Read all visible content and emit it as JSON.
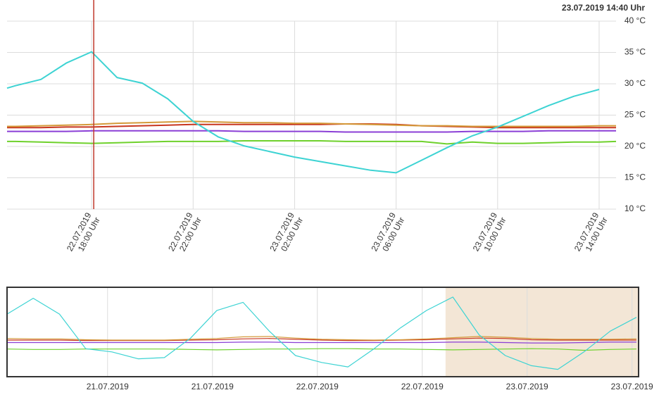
{
  "chart_data": [
    {
      "type": "line",
      "title": "23.07.2019 14:40 Uhr",
      "x": [
        "2019-07-22T14:40",
        "2019-07-22T15:00",
        "2019-07-22T16:00",
        "2019-07-22T17:00",
        "2019-07-22T18:00",
        "2019-07-22T19:00",
        "2019-07-22T20:00",
        "2019-07-22T21:00",
        "2019-07-22T22:00",
        "2019-07-22T23:00",
        "2019-07-23T00:00",
        "2019-07-23T01:00",
        "2019-07-23T02:00",
        "2019-07-23T03:00",
        "2019-07-23T04:00",
        "2019-07-23T05:00",
        "2019-07-23T06:00",
        "2019-07-23T07:00",
        "2019-07-23T08:00",
        "2019-07-23T09:00",
        "2019-07-23T10:00",
        "2019-07-23T11:00",
        "2019-07-23T12:00",
        "2019-07-23T13:00",
        "2019-07-23T14:00",
        "2019-07-23T14:40"
      ],
      "series": [
        {
          "color": "#3dd3d3",
          "values": [
            29.3,
            29.7,
            30.7,
            33.3,
            35.1,
            31.0,
            30.1,
            27.6,
            24.0,
            21.5,
            20.1,
            19.2,
            18.3,
            17.6,
            16.9,
            16.2,
            15.8,
            17.8,
            19.8,
            21.7,
            23.1,
            24.8,
            26.5,
            28.0,
            29.1,
            null
          ]
        },
        {
          "color": "#d49a3a",
          "values": [
            23.2,
            23.2,
            23.3,
            23.4,
            23.5,
            23.7,
            23.8,
            23.9,
            24.0,
            23.9,
            23.8,
            23.8,
            23.7,
            23.7,
            23.6,
            23.5,
            23.4,
            23.3,
            23.3,
            23.2,
            23.2,
            23.2,
            23.2,
            23.2,
            23.3,
            23.3
          ]
        },
        {
          "color": "#c8361f",
          "values": [
            23.0,
            23.0,
            23.0,
            23.1,
            23.1,
            23.2,
            23.3,
            23.4,
            23.5,
            23.5,
            23.5,
            23.5,
            23.5,
            23.5,
            23.6,
            23.6,
            23.5,
            23.3,
            23.2,
            23.1,
            23.0,
            23.0,
            23.0,
            23.0,
            23.0,
            23.0
          ]
        },
        {
          "color": "#8b3fd6",
          "values": [
            22.4,
            22.4,
            22.4,
            22.4,
            22.5,
            22.5,
            22.5,
            22.5,
            22.5,
            22.5,
            22.4,
            22.4,
            22.4,
            22.4,
            22.3,
            22.3,
            22.3,
            22.3,
            22.3,
            22.4,
            22.4,
            22.4,
            22.5,
            22.5,
            22.5,
            22.5
          ]
        },
        {
          "color": "#6fd12c",
          "values": [
            20.8,
            20.8,
            20.7,
            20.6,
            20.5,
            20.6,
            20.7,
            20.8,
            20.8,
            20.8,
            20.9,
            20.9,
            20.9,
            20.9,
            20.8,
            20.8,
            20.8,
            20.8,
            20.4,
            20.7,
            20.5,
            20.5,
            20.6,
            20.7,
            20.7,
            20.8
          ]
        }
      ],
      "xlim": [
        "2019-07-22T14:40",
        "2019-07-23T14:40"
      ],
      "xticks": [
        {
          "value": "2019-07-22T18:00",
          "label": [
            "22.07.2019",
            "18:00 Uhr"
          ]
        },
        {
          "value": "2019-07-22T22:00",
          "label": [
            "22.07.2019",
            "22:00 Uhr"
          ]
        },
        {
          "value": "2019-07-23T02:00",
          "label": [
            "23.07.2019",
            "02:00 Uhr"
          ]
        },
        {
          "value": "2019-07-23T06:00",
          "label": [
            "23.07.2019",
            "06:00 Uhr"
          ]
        },
        {
          "value": "2019-07-23T10:00",
          "label": [
            "23.07.2019",
            "10:00 Uhr"
          ]
        },
        {
          "value": "2019-07-23T14:00",
          "label": [
            "23.07.2019",
            "14:00 Uhr"
          ]
        }
      ],
      "ylim": [
        10,
        40
      ],
      "yticks": [
        {
          "value": 10,
          "label": "10 °C"
        },
        {
          "value": 15,
          "label": "15 °C"
        },
        {
          "value": 20,
          "label": "20 °C"
        },
        {
          "value": 25,
          "label": "25 °C"
        },
        {
          "value": 30,
          "label": "30 °C"
        },
        {
          "value": 35,
          "label": "35 °C"
        },
        {
          "value": 40,
          "label": "40 °C"
        }
      ],
      "grid": true,
      "cursor": "2019-07-22T18:05",
      "cursor_color": "#c0392b"
    },
    {
      "type": "line",
      "x": [
        "2019-07-20T12:30",
        "2019-07-20T15:30",
        "2019-07-20T18:30",
        "2019-07-20T21:30",
        "2019-07-21T00:30",
        "2019-07-21T03:30",
        "2019-07-21T06:30",
        "2019-07-21T09:30",
        "2019-07-21T12:30",
        "2019-07-21T15:30",
        "2019-07-21T18:30",
        "2019-07-21T21:30",
        "2019-07-22T00:30",
        "2019-07-22T03:30",
        "2019-07-22T06:30",
        "2019-07-22T09:30",
        "2019-07-22T12:30",
        "2019-07-22T15:30",
        "2019-07-22T18:30",
        "2019-07-22T21:30",
        "2019-07-23T00:30",
        "2019-07-23T03:30",
        "2019-07-23T06:30",
        "2019-07-23T09:30",
        "2019-07-23T12:30"
      ],
      "series": [
        {
          "color": "#3dd3d3",
          "values": [
            29.4,
            33.3,
            29.4,
            20.9,
            20.1,
            18.4,
            18.7,
            23.5,
            30.3,
            32.3,
            25.2,
            19.2,
            17.5,
            16.4,
            20.9,
            26.0,
            30.3,
            33.6,
            24.3,
            19.2,
            16.7,
            15.8,
            20.1,
            25.2,
            28.6
          ]
        },
        {
          "color": "#d49a3a",
          "values": [
            23.4,
            23.3,
            23.3,
            23.1,
            23.0,
            23.0,
            23.0,
            23.2,
            23.4,
            23.8,
            23.9,
            23.5,
            23.2,
            23.1,
            23.0,
            23.1,
            23.3,
            23.6,
            23.9,
            23.7,
            23.4,
            23.2,
            23.2,
            23.2,
            23.3
          ]
        },
        {
          "color": "#c8361f",
          "values": [
            23.0,
            23.0,
            23.0,
            22.9,
            22.9,
            22.9,
            22.9,
            23.0,
            23.1,
            23.3,
            23.4,
            23.2,
            23.0,
            22.9,
            22.9,
            23.0,
            23.1,
            23.3,
            23.5,
            23.4,
            23.1,
            23.0,
            23.0,
            23.0,
            23.0
          ]
        },
        {
          "color": "#8b3fd6",
          "values": [
            22.4,
            22.4,
            22.4,
            22.4,
            22.4,
            22.4,
            22.4,
            22.4,
            22.4,
            22.5,
            22.5,
            22.4,
            22.4,
            22.4,
            22.4,
            22.4,
            22.4,
            22.5,
            22.5,
            22.4,
            22.3,
            22.3,
            22.4,
            22.5,
            22.5
          ]
        },
        {
          "color": "#6fd12c",
          "values": [
            20.8,
            20.7,
            20.7,
            20.8,
            20.8,
            20.8,
            20.8,
            20.7,
            20.6,
            20.7,
            20.8,
            20.8,
            20.9,
            20.9,
            20.8,
            20.8,
            20.7,
            20.6,
            20.7,
            20.8,
            20.9,
            20.8,
            20.5,
            20.7,
            20.8
          ]
        }
      ],
      "xlim": [
        "2019-07-20T12:30",
        "2019-07-23T12:45"
      ],
      "xticks": [
        {
          "value": "2019-07-21T00:00",
          "label": "21.07.2019"
        },
        {
          "value": "2019-07-21T12:00",
          "label": "21.07.2019"
        },
        {
          "value": "2019-07-22T00:00",
          "label": "22.07.2019"
        },
        {
          "value": "2019-07-22T12:00",
          "label": "22.07.2019"
        },
        {
          "value": "2019-07-23T00:00",
          "label": "23.07.2019"
        },
        {
          "value": "2019-07-23T12:00",
          "label": "23.07.2019"
        }
      ],
      "ylim": [
        14,
        36
      ],
      "grid": true
    }
  ]
}
